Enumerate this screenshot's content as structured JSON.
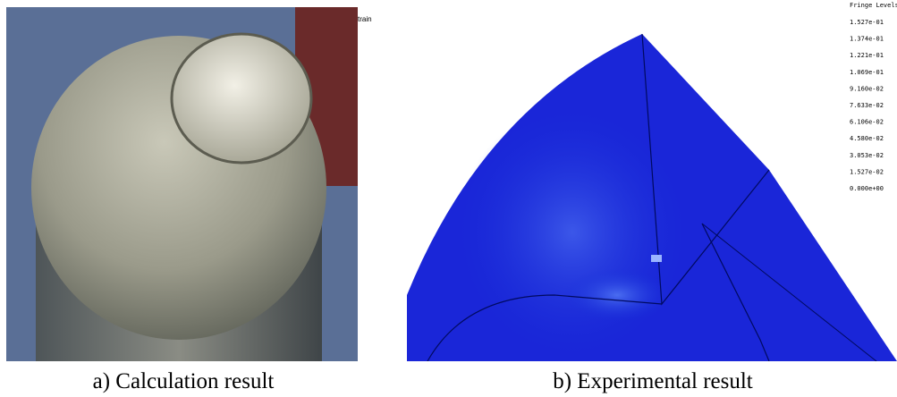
{
  "figure": {
    "left_panel": {
      "caption": "a) Calculation result",
      "overlay_text": "train"
    },
    "right_panel": {
      "caption": "b) Experimental result",
      "legend_title": "Fringe Levels",
      "legend_levels": [
        "1.527e-01",
        "1.374e-01",
        "1.221e-01",
        "1.069e-01",
        "9.160e-02",
        "7.633e-02",
        "6.106e-02",
        "4.580e-02",
        "3.053e-02",
        "1.527e-02",
        "0.000e+00"
      ]
    }
  }
}
